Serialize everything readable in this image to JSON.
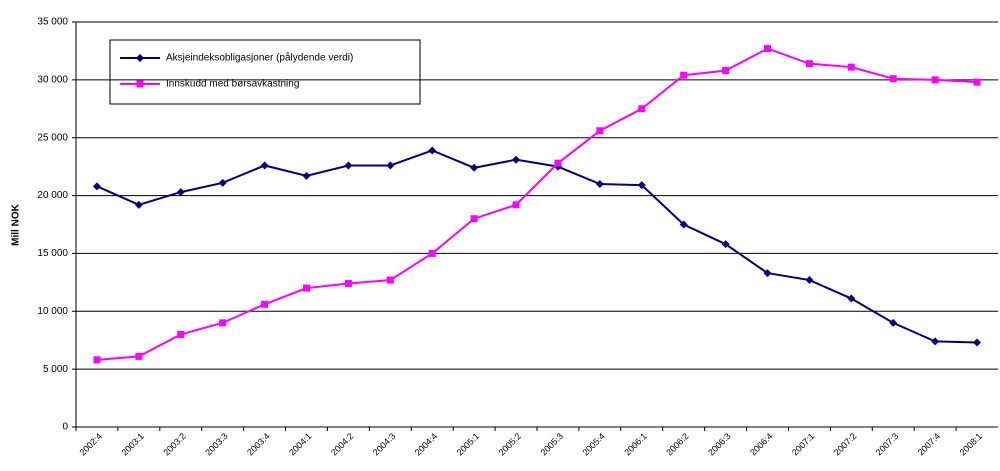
{
  "chart_data": {
    "type": "line",
    "y_label": "Mill NOK",
    "categories": [
      "2002:4",
      "2003:1",
      "2003:2",
      "2003:3",
      "2003:4",
      "2004:1",
      "2004:2",
      "2004:3",
      "2004:4",
      "2005:1",
      "2005:2",
      "2005:3",
      "2005:4",
      "2006:1",
      "2006:2",
      "2006:3",
      "2006:4",
      "2007:1",
      "2007:2",
      "2007:3",
      "2007:4",
      "2008:1"
    ],
    "series": [
      {
        "name": "Aksjeindeksobligasjoner (pålydende verdi)",
        "color": "#000080",
        "marker": "diamond",
        "values": [
          20800,
          19200,
          20300,
          21100,
          22600,
          21700,
          22600,
          22600,
          23900,
          22400,
          23100,
          22500,
          21000,
          20900,
          17500,
          15800,
          13300,
          12700,
          11100,
          9000,
          7400,
          7300
        ]
      },
      {
        "name": "Innskudd med børsavkastning",
        "color": "#ff00ff",
        "marker": "square",
        "values": [
          5800,
          6100,
          8000,
          9000,
          10600,
          12000,
          12400,
          12700,
          15000,
          18000,
          19200,
          22800,
          25600,
          27500,
          30400,
          30800,
          32700,
          31400,
          31100,
          30100,
          30000,
          29800
        ]
      }
    ],
    "ylim": [
      0,
      35000
    ],
    "yticks": [
      0,
      {
        "value": 5000,
        "label": "5 000"
      },
      {
        "value": 10000,
        "label": "10 000"
      },
      {
        "value": 15000,
        "label": "15 000"
      },
      {
        "value": 20000,
        "label": "20 000"
      },
      {
        "value": 25000,
        "label": "25 000"
      },
      {
        "value": 30000,
        "label": "30 000"
      },
      {
        "value": 35000,
        "label": "35 000"
      }
    ],
    "grid": true
  }
}
